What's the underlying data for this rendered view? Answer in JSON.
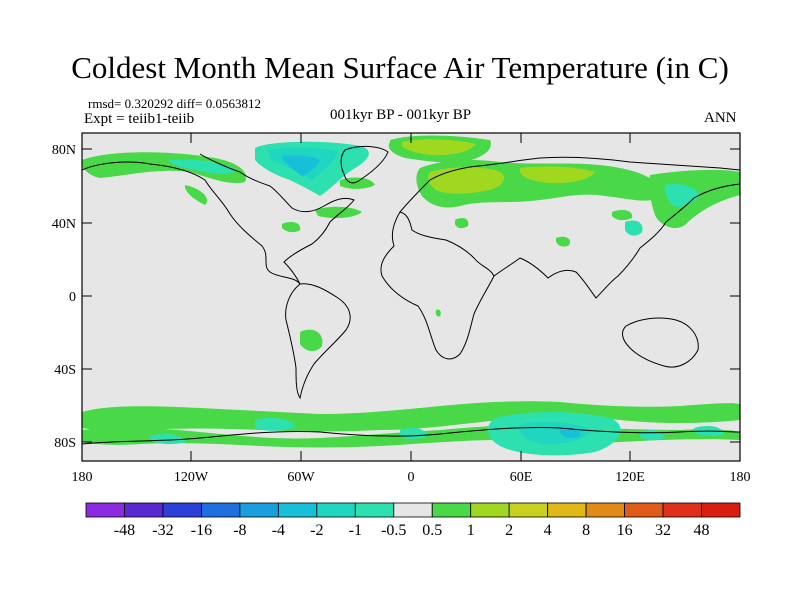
{
  "title": "Coldest Month Mean Surface Air Temperature (in C)",
  "stats": "rmsd= 0.320292 diff= 0.0563812",
  "experiment": "Expt = teiib1-teiib",
  "period": "001kyr BP - 001kyr BP",
  "season": "ANN",
  "lat_ticks": [
    "80N",
    "40N",
    "0",
    "40S",
    "80S"
  ],
  "lon_ticks": [
    "180",
    "120W",
    "60W",
    "0",
    "60E",
    "120E",
    "180"
  ],
  "colorbar": {
    "labels": [
      "-48",
      "-32",
      "-16",
      "-8",
      "-4",
      "-2",
      "-1",
      "-0.5",
      "0.5",
      "1",
      "2",
      "4",
      "8",
      "16",
      "32",
      "48"
    ],
    "colors": [
      "#8a2be2",
      "#5a28d0",
      "#2c3fd8",
      "#1f6fe0",
      "#199ee0",
      "#17c0d8",
      "#1fd6c0",
      "#2de0b0",
      "#e6e6e6",
      "#48d848",
      "#a0d820",
      "#c8d020",
      "#e0b818",
      "#e08a18",
      "#e05a18",
      "#e0301a",
      "#d81e10"
    ]
  },
  "ocean_color": "#e6e6e6"
}
